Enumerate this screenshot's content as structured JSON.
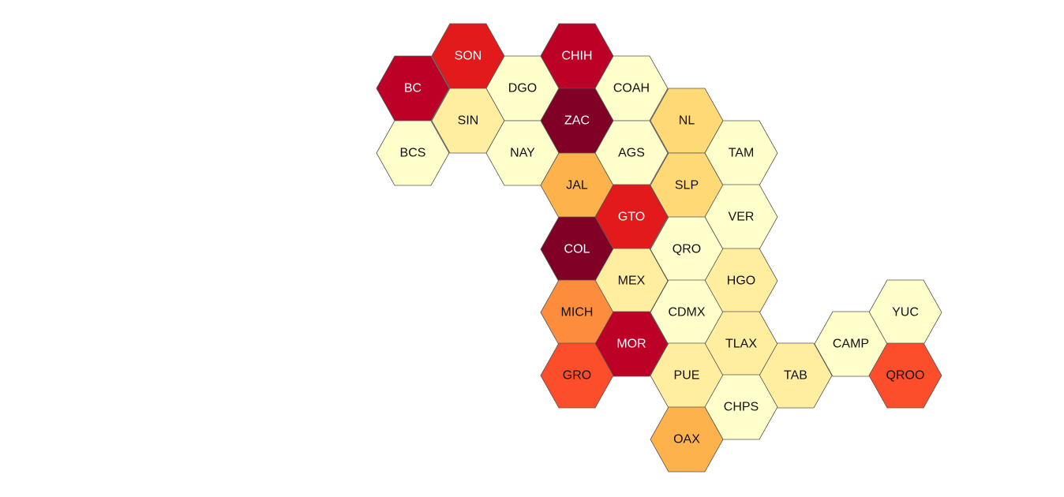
{
  "map": {
    "type": "hex-tile-map",
    "palette": {
      "pale_yellow": "#ffffcc",
      "light_yellow": "#ffeda0",
      "yellow_orange": "#fed976",
      "orange": "#feb24c",
      "dark_orange": "#fd8d3c",
      "orange_red": "#fc4e2a",
      "red": "#e31a1c",
      "crimson": "#bd0026",
      "dark_red": "#800026"
    },
    "states": [
      {
        "code": "SON",
        "color": "#e31a1c",
        "label_color": "#ffffff"
      },
      {
        "code": "CHIH",
        "color": "#bd0026",
        "label_color": "#ffffff"
      },
      {
        "code": "BC",
        "color": "#bd0026",
        "label_color": "#ffffff"
      },
      {
        "code": "DGO",
        "color": "#ffffcc",
        "label_color": "#111111"
      },
      {
        "code": "COAH",
        "color": "#ffffcc",
        "label_color": "#111111"
      },
      {
        "code": "SIN",
        "color": "#ffeda0",
        "label_color": "#111111"
      },
      {
        "code": "ZAC",
        "color": "#800026",
        "label_color": "#ffffff"
      },
      {
        "code": "NL",
        "color": "#fed976",
        "label_color": "#111111"
      },
      {
        "code": "BCS",
        "color": "#ffffcc",
        "label_color": "#111111"
      },
      {
        "code": "NAY",
        "color": "#ffffcc",
        "label_color": "#111111"
      },
      {
        "code": "AGS",
        "color": "#ffffcc",
        "label_color": "#111111"
      },
      {
        "code": "TAM",
        "color": "#ffffcc",
        "label_color": "#111111"
      },
      {
        "code": "JAL",
        "color": "#feb24c",
        "label_color": "#111111"
      },
      {
        "code": "SLP",
        "color": "#fed976",
        "label_color": "#111111"
      },
      {
        "code": "GTO",
        "color": "#e31a1c",
        "label_color": "#ffffff"
      },
      {
        "code": "VER",
        "color": "#ffffcc",
        "label_color": "#111111"
      },
      {
        "code": "COL",
        "color": "#800026",
        "label_color": "#ffffff"
      },
      {
        "code": "QRO",
        "color": "#ffffcc",
        "label_color": "#111111"
      },
      {
        "code": "MEX",
        "color": "#ffeda0",
        "label_color": "#111111"
      },
      {
        "code": "HGO",
        "color": "#ffeda0",
        "label_color": "#111111"
      },
      {
        "code": "MICH",
        "color": "#fd8d3c",
        "label_color": "#111111"
      },
      {
        "code": "CDMX",
        "color": "#ffffcc",
        "label_color": "#111111"
      },
      {
        "code": "YUC",
        "color": "#ffffcc",
        "label_color": "#111111"
      },
      {
        "code": "MOR",
        "color": "#bd0026",
        "label_color": "#ffffff"
      },
      {
        "code": "TLAX",
        "color": "#ffeda0",
        "label_color": "#111111"
      },
      {
        "code": "CAMP",
        "color": "#ffffcc",
        "label_color": "#111111"
      },
      {
        "code": "GRO",
        "color": "#fc4e2a",
        "label_color": "#111111"
      },
      {
        "code": "PUE",
        "color": "#ffeda0",
        "label_color": "#111111"
      },
      {
        "code": "TAB",
        "color": "#ffeda0",
        "label_color": "#111111"
      },
      {
        "code": "QROO",
        "color": "#fc4e2a",
        "label_color": "#111111"
      },
      {
        "code": "CHPS",
        "color": "#ffffcc",
        "label_color": "#111111"
      },
      {
        "code": "OAX",
        "color": "#feb24c",
        "label_color": "#111111"
      }
    ]
  }
}
